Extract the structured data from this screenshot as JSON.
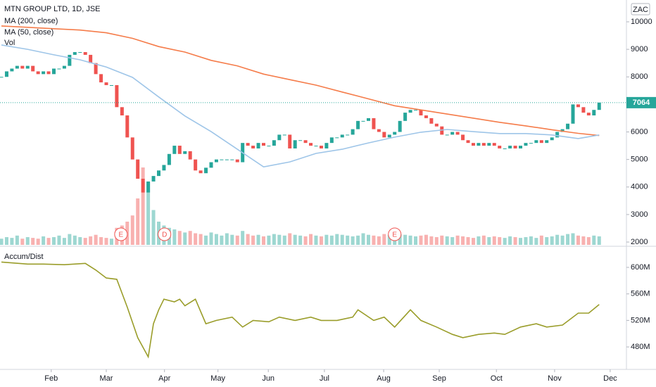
{
  "chart_data": [
    {
      "type": "candlestick",
      "title": "MTN GROUP LTD, 1D, JSE",
      "currency": "ZAC",
      "xlim": [
        -0.27,
        119.2
      ],
      "ylim": [
        1898,
        10792
      ],
      "yticks": [
        2000,
        3000,
        4000,
        5000,
        6000,
        7000,
        8000,
        9000,
        10000
      ],
      "last_price": 7064,
      "up_color": "#26a69a",
      "down_color": "#ef5350",
      "series": [
        {
          "name": "MTN GROUP LTD, 1D, JSE",
          "type": "candlestick",
          "x": [
            0,
            1,
            2,
            3,
            4,
            5,
            6,
            7,
            8,
            9,
            10,
            11,
            12,
            13,
            14,
            15,
            16,
            17,
            18,
            19,
            20,
            21,
            22,
            23,
            24,
            25,
            26,
            27,
            28,
            29,
            30,
            31,
            32,
            33,
            34,
            35,
            36,
            37,
            38,
            39,
            40,
            41,
            42,
            43,
            44,
            45,
            46,
            47,
            48,
            49,
            50,
            51,
            52,
            53,
            54,
            55,
            56,
            57,
            58,
            59,
            60,
            61,
            62,
            63,
            64,
            65,
            66,
            67,
            68,
            69,
            70,
            71,
            72,
            73,
            74,
            75,
            76,
            77,
            78,
            79,
            80,
            81,
            82,
            83,
            84,
            85,
            86,
            87,
            88,
            89,
            90,
            91,
            92,
            93,
            94,
            95,
            96,
            97,
            98,
            99,
            100,
            101,
            102,
            103,
            104,
            105,
            106,
            107,
            108,
            109,
            110,
            111,
            112,
            113,
            114
          ],
          "values": [
            8000,
            8200,
            8300,
            8400,
            8300,
            8400,
            8200,
            8100,
            8200,
            8100,
            8300,
            8300,
            8400,
            8800,
            8900,
            8900,
            8800,
            8500,
            8100,
            7800,
            7700,
            7700,
            6900,
            6600,
            5800,
            5000,
            4300,
            3800,
            4200,
            4400,
            4600,
            4800,
            5200,
            5500,
            5200,
            5300,
            5000,
            4600,
            4500,
            4700,
            4900,
            5000,
            5000,
            5000,
            5000,
            4900,
            5600,
            5500,
            5400,
            5600,
            5500,
            5500,
            5700,
            5900,
            5900,
            5400,
            5700,
            5700,
            5600,
            5500,
            5500,
            5400,
            5600,
            5800,
            5800,
            5900,
            5900,
            6100,
            6400,
            6400,
            6500,
            6100,
            6000,
            5800,
            5900,
            6000,
            6400,
            6700,
            6800,
            6800,
            6600,
            6500,
            6300,
            6200,
            5900,
            5900,
            6000,
            5900,
            5700,
            5600,
            5500,
            5600,
            5500,
            5600,
            5500,
            5400,
            5400,
            5500,
            5400,
            5500,
            5600,
            5600,
            5700,
            5600,
            5700,
            5800,
            6000,
            6100,
            6300,
            7000,
            6900,
            6700,
            6600,
            6800,
            7064
          ]
        },
        {
          "name": "MA (200, close)",
          "type": "line",
          "color": "#f57c4a",
          "x": [
            0,
            5,
            10,
            15,
            20,
            25,
            30,
            35,
            40,
            45,
            50,
            55,
            60,
            65,
            70,
            75,
            80,
            85,
            90,
            95,
            100,
            105,
            110,
            114
          ],
          "values": [
            9850,
            9800,
            9750,
            9700,
            9600,
            9400,
            9100,
            8900,
            8600,
            8400,
            8100,
            7900,
            7700,
            7450,
            7200,
            6950,
            6800,
            6650,
            6500,
            6350,
            6220,
            6080,
            5950,
            5870
          ]
        },
        {
          "name": "MA (50, close)",
          "type": "line",
          "color": "#9ec5e8",
          "x": [
            0,
            5,
            10,
            15,
            20,
            25,
            30,
            35,
            40,
            45,
            50,
            55,
            60,
            65,
            70,
            75,
            80,
            85,
            90,
            95,
            100,
            105,
            110,
            114
          ],
          "values": [
            9160,
            9000,
            8800,
            8620,
            8360,
            7980,
            7270,
            6580,
            6010,
            5370,
            4730,
            4910,
            5220,
            5370,
            5600,
            5810,
            5990,
            6090,
            6010,
            5940,
            5940,
            5890,
            5760,
            5890
          ]
        }
      ],
      "volume_name": "Vol",
      "vlim": [
        0,
        100
      ],
      "volume": [
        8,
        10,
        9,
        12,
        8,
        10,
        9,
        8,
        11,
        9,
        10,
        12,
        9,
        14,
        12,
        10,
        9,
        11,
        13,
        10,
        9,
        8,
        22,
        25,
        30,
        38,
        60,
        100,
        80,
        45,
        30,
        25,
        22,
        20,
        18,
        16,
        18,
        15,
        14,
        12,
        16,
        14,
        12,
        15,
        13,
        12,
        18,
        14,
        12,
        13,
        11,
        12,
        14,
        13,
        12,
        15,
        13,
        12,
        11,
        14,
        12,
        11,
        13,
        12,
        14,
        13,
        12,
        11,
        12,
        15,
        13,
        12,
        11,
        14,
        13,
        12,
        14,
        13,
        12,
        11,
        12,
        13,
        11,
        10,
        12,
        11,
        10,
        12,
        11,
        10,
        9,
        11,
        12,
        10,
        11,
        10,
        9,
        11,
        10,
        9,
        10,
        11,
        9,
        12,
        10,
        11,
        13,
        12,
        14,
        15,
        12,
        11,
        10,
        12,
        11
      ],
      "events": [
        {
          "label": "E",
          "x": 22.8
        },
        {
          "label": "D",
          "x": 31.1
        },
        {
          "label": "E",
          "x": 75
        }
      ]
    },
    {
      "type": "line",
      "title": "Accum/Dist",
      "xlim": [
        -0.27,
        119.2
      ],
      "ylim": [
        446100000,
        629700000
      ],
      "yticks": [
        {
          "value": 480000000,
          "label": "480M"
        },
        {
          "value": 520000000,
          "label": "520M"
        },
        {
          "value": 560000000,
          "label": "560M"
        },
        {
          "value": 600000000,
          "label": "600M"
        }
      ],
      "xticks": [
        {
          "value": 9.5,
          "label": "Feb"
        },
        {
          "value": 20,
          "label": "Mar"
        },
        {
          "value": 31.1,
          "label": "Apr"
        },
        {
          "value": 41.3,
          "label": "May"
        },
        {
          "value": 50.9,
          "label": "Jun"
        },
        {
          "value": 61.6,
          "label": "Jul"
        },
        {
          "value": 72.9,
          "label": "Aug"
        },
        {
          "value": 83.5,
          "label": "Sep"
        },
        {
          "value": 94.4,
          "label": "Oct"
        },
        {
          "value": 105.5,
          "label": "Nov"
        },
        {
          "value": 116.1,
          "label": "Dec"
        }
      ],
      "series": [
        {
          "name": "Accum/Dist",
          "color": "#9a9d2a",
          "x": [
            0,
            5,
            8,
            12,
            16,
            18,
            20,
            22,
            24,
            26,
            28,
            29,
            30,
            31,
            33,
            34,
            35,
            37,
            39,
            41,
            44,
            46,
            48,
            51,
            53,
            56,
            59,
            61,
            64,
            67,
            68,
            71,
            73,
            75,
            78,
            80,
            83,
            86,
            88,
            91,
            94,
            96,
            99,
            102,
            104,
            107,
            110,
            112,
            114
          ],
          "values": [
            608000000,
            605000000,
            605000000,
            604000000,
            606000000,
            596000000,
            584000000,
            582000000,
            540000000,
            494000000,
            465000000,
            515000000,
            536000000,
            552000000,
            548000000,
            552000000,
            542000000,
            552000000,
            515000000,
            520000000,
            525000000,
            510000000,
            520000000,
            518000000,
            525000000,
            520000000,
            525000000,
            520000000,
            520000000,
            525000000,
            536000000,
            520000000,
            525000000,
            510000000,
            536000000,
            520000000,
            510000000,
            499000000,
            494000000,
            499000000,
            501000000,
            499000000,
            510000000,
            515000000,
            510000000,
            513000000,
            531000000,
            531000000,
            544000000
          ]
        }
      ]
    }
  ]
}
